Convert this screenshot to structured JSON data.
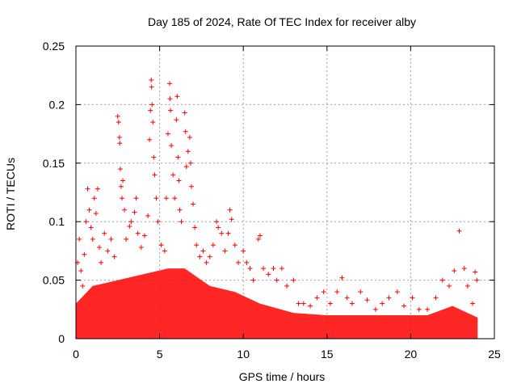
{
  "chart_data": {
    "type": "scatter",
    "title": "Day 185 of 2024, Rate Of TEC Index for receiver alby",
    "xlabel": "GPS time / hours",
    "ylabel": "ROTI / TECUs",
    "xlim": [
      0,
      25
    ],
    "ylim": [
      0,
      0.25
    ],
    "xticks": [
      0,
      5,
      10,
      15,
      20,
      25
    ],
    "yticks": [
      0,
      0.05,
      0.1,
      0.15,
      0.2,
      0.25
    ],
    "xtick_labels": [
      "0",
      "5",
      "10",
      "15",
      "20",
      "25"
    ],
    "ytick_labels": [
      "0",
      "0.05",
      "0.1",
      "0.15",
      "0.2",
      "0.25"
    ],
    "grid": true,
    "marker": "+",
    "color": "#ff0000",
    "series": [
      {
        "name": "ROTI",
        "points": [
          [
            0.1,
            0.065
          ],
          [
            0.2,
            0.085
          ],
          [
            0.3,
            0.058
          ],
          [
            0.4,
            0.045
          ],
          [
            0.5,
            0.072
          ],
          [
            0.6,
            0.1
          ],
          [
            0.7,
            0.128
          ],
          [
            0.8,
            0.11
          ],
          [
            0.9,
            0.095
          ],
          [
            1.0,
            0.085
          ],
          [
            1.1,
            0.12
          ],
          [
            1.2,
            0.107
          ],
          [
            1.3,
            0.128
          ],
          [
            1.4,
            0.078
          ],
          [
            1.5,
            0.065
          ],
          [
            1.7,
            0.09
          ],
          [
            1.9,
            0.075
          ],
          [
            2.1,
            0.085
          ],
          [
            2.3,
            0.07
          ],
          [
            2.5,
            0.19
          ],
          [
            2.55,
            0.185
          ],
          [
            2.6,
            0.172
          ],
          [
            2.62,
            0.167
          ],
          [
            2.65,
            0.145
          ],
          [
            2.7,
            0.13
          ],
          [
            2.75,
            0.12
          ],
          [
            2.8,
            0.135
          ],
          [
            2.9,
            0.11
          ],
          [
            3.0,
            0.085
          ],
          [
            3.2,
            0.096
          ],
          [
            3.3,
            0.1
          ],
          [
            3.5,
            0.108
          ],
          [
            3.6,
            0.12
          ],
          [
            3.7,
            0.09
          ],
          [
            3.9,
            0.078
          ],
          [
            4.1,
            0.088
          ],
          [
            4.3,
            0.105
          ],
          [
            4.4,
            0.17
          ],
          [
            4.45,
            0.195
          ],
          [
            4.5,
            0.221
          ],
          [
            4.52,
            0.215
          ],
          [
            4.55,
            0.2
          ],
          [
            4.6,
            0.185
          ],
          [
            4.65,
            0.155
          ],
          [
            4.7,
            0.14
          ],
          [
            4.8,
            0.12
          ],
          [
            4.9,
            0.1
          ],
          [
            5.1,
            0.08
          ],
          [
            5.3,
            0.075
          ],
          [
            5.4,
            0.12
          ],
          [
            5.5,
            0.175
          ],
          [
            5.6,
            0.218
          ],
          [
            5.62,
            0.205
          ],
          [
            5.65,
            0.195
          ],
          [
            5.7,
            0.165
          ],
          [
            5.8,
            0.14
          ],
          [
            5.9,
            0.12
          ],
          [
            6.0,
            0.187
          ],
          [
            6.05,
            0.207
          ],
          [
            6.1,
            0.155
          ],
          [
            6.15,
            0.135
          ],
          [
            6.2,
            0.11
          ],
          [
            6.3,
            0.1
          ],
          [
            6.5,
            0.193
          ],
          [
            6.55,
            0.177
          ],
          [
            6.6,
            0.147
          ],
          [
            6.7,
            0.16
          ],
          [
            6.8,
            0.172
          ],
          [
            6.85,
            0.15
          ],
          [
            6.9,
            0.13
          ],
          [
            7.0,
            0.115
          ],
          [
            7.1,
            0.095
          ],
          [
            7.2,
            0.08
          ],
          [
            7.4,
            0.07
          ],
          [
            7.6,
            0.075
          ],
          [
            7.8,
            0.065
          ],
          [
            8.0,
            0.07
          ],
          [
            8.2,
            0.08
          ],
          [
            8.4,
            0.1
          ],
          [
            8.5,
            0.095
          ],
          [
            8.7,
            0.09
          ],
          [
            8.9,
            0.075
          ],
          [
            9.1,
            0.09
          ],
          [
            9.2,
            0.11
          ],
          [
            9.3,
            0.102
          ],
          [
            9.5,
            0.08
          ],
          [
            9.7,
            0.065
          ],
          [
            10.0,
            0.075
          ],
          [
            10.2,
            0.065
          ],
          [
            10.4,
            0.06
          ],
          [
            10.6,
            0.05
          ],
          [
            10.9,
            0.085
          ],
          [
            11.0,
            0.088
          ],
          [
            11.2,
            0.06
          ],
          [
            11.5,
            0.055
          ],
          [
            11.8,
            0.06
          ],
          [
            12.0,
            0.05
          ],
          [
            12.3,
            0.06
          ],
          [
            12.6,
            0.045
          ],
          [
            13.0,
            0.05
          ],
          [
            13.3,
            0.03
          ],
          [
            13.6,
            0.03
          ],
          [
            14.0,
            0.028
          ],
          [
            14.4,
            0.035
          ],
          [
            14.8,
            0.04
          ],
          [
            15.2,
            0.03
          ],
          [
            15.6,
            0.04
          ],
          [
            15.9,
            0.052
          ],
          [
            16.2,
            0.035
          ],
          [
            16.5,
            0.03
          ],
          [
            17.0,
            0.04
          ],
          [
            17.4,
            0.033
          ],
          [
            17.9,
            0.025
          ],
          [
            18.3,
            0.03
          ],
          [
            18.7,
            0.035
          ],
          [
            19.2,
            0.04
          ],
          [
            19.6,
            0.028
          ],
          [
            20.1,
            0.035
          ],
          [
            20.5,
            0.025
          ],
          [
            21.0,
            0.025
          ],
          [
            21.5,
            0.035
          ],
          [
            21.9,
            0.05
          ],
          [
            22.3,
            0.045
          ],
          [
            22.6,
            0.058
          ],
          [
            22.9,
            0.092
          ],
          [
            23.2,
            0.06
          ],
          [
            23.4,
            0.045
          ],
          [
            23.7,
            0.03
          ],
          [
            23.85,
            0.057
          ],
          [
            23.95,
            0.05
          ]
        ]
      }
    ]
  }
}
